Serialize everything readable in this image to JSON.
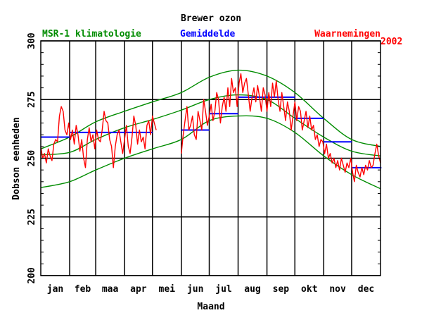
{
  "chart_data": {
    "type": "line",
    "title": "Brewer ozon",
    "xlabel": "Maand",
    "ylabel": "Dobson eenheden",
    "year_label": "2002",
    "ylim": [
      200,
      300
    ],
    "xlim": [
      1,
      366
    ],
    "yticks": [
      200,
      225,
      250,
      275,
      300
    ],
    "month_labels": [
      "jan",
      "feb",
      "maa",
      "apr",
      "mei",
      "jun",
      "jul",
      "aug",
      "sep",
      "okt",
      "nov",
      "dec"
    ],
    "month_starts": [
      1,
      32,
      60,
      91,
      121,
      152,
      182,
      213,
      244,
      274,
      305,
      335
    ],
    "legend": {
      "climatology": "MSR-1 klimatologie",
      "mean": "Gemiddelde",
      "observations": "Waarnemingen"
    },
    "colors": {
      "climatology": "#008c00",
      "mean": "#0000ff",
      "observations": "#ff0000",
      "axis": "#000000"
    },
    "climatology": {
      "x": [
        1,
        32,
        60,
        91,
        121,
        152,
        182,
        213,
        244,
        274,
        305,
        335,
        366
      ],
      "mean": [
        251.5,
        252.5,
        258,
        263,
        266.5,
        270.5,
        275,
        277,
        275,
        267,
        259,
        253,
        251
      ],
      "upper": [
        254,
        259,
        265.5,
        270,
        274,
        278,
        284.5,
        287.5,
        285,
        278,
        267,
        258,
        255
      ],
      "lower": [
        237.5,
        240,
        245,
        250,
        254,
        258,
        266,
        268,
        267,
        261,
        251,
        243,
        237
      ]
    },
    "monthly_means": [
      {
        "month": "jan",
        "x0": 1,
        "x1": 31,
        "value": 259
      },
      {
        "month": "feb",
        "x0": 32,
        "x1": 59,
        "value": 261
      },
      {
        "month": "maa",
        "x0": 60,
        "x1": 90,
        "value": 261
      },
      {
        "month": "apr",
        "x0": 91,
        "x1": 120,
        "value": 261
      },
      {
        "month": "jun",
        "x0": 152,
        "x1": 181,
        "value": 262
      },
      {
        "month": "jul",
        "x0": 182,
        "x1": 212,
        "value": 269
      },
      {
        "month": "aug",
        "x0": 213,
        "x1": 243,
        "value": 276
      },
      {
        "month": "sep",
        "x0": 244,
        "x1": 273,
        "value": 276
      },
      {
        "month": "okt",
        "x0": 274,
        "x1": 304,
        "value": 267
      },
      {
        "month": "nov",
        "x0": 305,
        "x1": 334,
        "value": 257
      },
      {
        "month": "dec",
        "x0": 335,
        "x1": 366,
        "value": 246
      }
    ],
    "observations": [
      {
        "x": [
          1,
          3,
          5,
          7,
          9,
          11,
          13,
          15,
          17,
          19,
          21,
          23,
          25,
          27,
          29,
          31,
          33,
          35,
          37,
          39,
          41,
          43,
          45,
          47,
          49,
          51,
          53,
          55,
          57,
          59,
          61,
          63,
          65,
          67,
          69,
          71,
          73,
          75,
          77,
          79,
          81,
          83,
          85,
          87,
          89,
          91,
          93,
          95,
          97,
          99,
          101,
          103,
          105,
          107,
          109,
          111,
          113,
          115,
          117,
          119,
          121,
          123,
          125
        ],
        "y": [
          255,
          250,
          252,
          248,
          254,
          251,
          249,
          256,
          258,
          257,
          268,
          272,
          270,
          262,
          260,
          265,
          258,
          262,
          256,
          264,
          260,
          253,
          258,
          250,
          246,
          258,
          263,
          257,
          260,
          254,
          262,
          258,
          257,
          262,
          270,
          266,
          265,
          258,
          255,
          246,
          255,
          260,
          262,
          257,
          252,
          258,
          264,
          255,
          252,
          259,
          268,
          264,
          256,
          262,
          257,
          259,
          254,
          264,
          266,
          260,
          268,
          265,
          262
        ]
      },
      {
        "x": [
          152,
          154,
          156,
          158,
          160,
          162,
          164,
          166,
          168,
          170,
          172,
          174,
          176,
          178,
          180,
          182,
          184,
          186,
          188,
          190,
          192,
          194,
          196,
          198,
          200,
          202,
          204,
          206,
          208,
          210,
          212,
          214,
          216,
          218,
          220,
          222,
          224,
          226,
          228,
          230,
          232,
          234,
          236,
          238,
          240,
          242,
          244,
          246,
          248,
          250,
          252,
          254,
          256,
          258,
          260,
          262,
          264,
          266,
          268,
          270,
          272,
          274,
          276,
          278,
          280,
          282,
          284,
          286,
          288,
          290,
          292,
          294,
          296,
          298,
          300,
          302,
          304,
          306,
          308,
          310,
          312,
          314,
          316,
          318,
          320,
          322,
          324,
          326,
          328,
          330,
          332,
          334,
          336,
          338,
          340,
          342,
          344,
          346,
          348,
          350,
          352,
          354,
          356,
          358,
          360,
          362,
          364,
          366
        ],
        "y": [
          252,
          260,
          266,
          272,
          262,
          264,
          268,
          260,
          258,
          270,
          266,
          262,
          275,
          270,
          264,
          268,
          273,
          266,
          270,
          278,
          275,
          265,
          272,
          276,
          270,
          280,
          272,
          284,
          278,
          280,
          272,
          282,
          286,
          278,
          282,
          284,
          277,
          270,
          276,
          280,
          274,
          281,
          276,
          270,
          280,
          277,
          270,
          278,
          272,
          282,
          276,
          283,
          275,
          270,
          278,
          272,
          266,
          274,
          270,
          262,
          268,
          274,
          266,
          272,
          270,
          262,
          266,
          270,
          263,
          268,
          262,
          264,
          258,
          260,
          255,
          258,
          257,
          252,
          256,
          250,
          252,
          248,
          250,
          246,
          249,
          245,
          250,
          247,
          244,
          248,
          246,
          250,
          244,
          240,
          247,
          244,
          242,
          246,
          243,
          247,
          245,
          249,
          246,
          247,
          252,
          256,
          251,
          248
        ]
      }
    ]
  }
}
